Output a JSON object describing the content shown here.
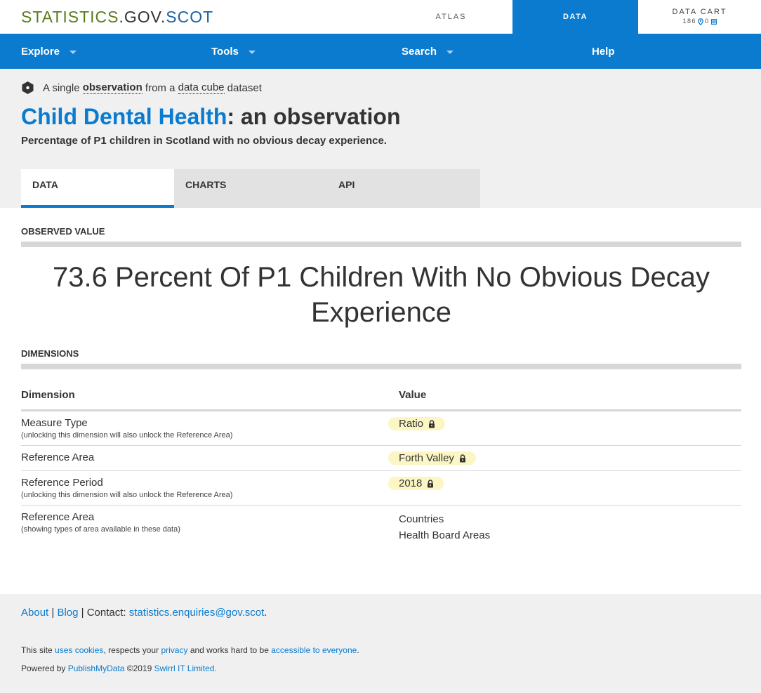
{
  "topbar": {
    "brand_part1": "STATISTICS",
    "brand_part2": ".GOV.",
    "brand_part3": "SCOT",
    "atlas": "ATLAS",
    "data": "DATA",
    "cart_title": "DATA CART",
    "cart_count_places": "186",
    "cart_count_data": "0"
  },
  "mainnav": {
    "items": [
      {
        "label": "Explore"
      },
      {
        "label": "Tools"
      },
      {
        "label": "Search"
      },
      {
        "label": "Help"
      }
    ]
  },
  "header": {
    "intro_prefix": "A single",
    "intro_term1": "observation",
    "intro_mid": "from a",
    "intro_term2": "data cube",
    "intro_suffix": "dataset",
    "title_link": "Child Dental Health",
    "title_suffix": ": an observation",
    "subtitle": "Percentage of P1 children in Scotland with no obvious decay experience.",
    "tabs": [
      {
        "label": "DATA",
        "active": true
      },
      {
        "label": "CHARTS",
        "active": false
      },
      {
        "label": "API",
        "active": false
      }
    ]
  },
  "observed": {
    "section_label": "OBSERVED VALUE",
    "value_text": "73.6 Percent Of P1 Children With No Obvious Decay Experience"
  },
  "dimensions": {
    "section_label": "DIMENSIONS",
    "col_dimension": "Dimension",
    "col_value": "Value",
    "rows": [
      {
        "name": "Measure Type",
        "note": "(unlocking this dimension will also unlock the Reference Area)",
        "value": "Ratio"
      },
      {
        "name": "Reference Area",
        "note": "",
        "value": "Forth Valley"
      },
      {
        "name": "Reference Period",
        "note": "(unlocking this dimension will also unlock the Reference Area)",
        "value": "2018"
      },
      {
        "name": "Reference Area",
        "note": "(showing types of area available in these data)",
        "values": [
          "Countries",
          "Health Board Areas"
        ]
      }
    ]
  },
  "footer": {
    "about": "About",
    "sep1": "|",
    "blog": "Blog",
    "contact_prefix": "| Contact:",
    "email": "statistics.enquiries@gov.scot",
    "period": ".",
    "line1_a": "This site",
    "line1_cookies": "uses cookies",
    "line1_b": ", respects your",
    "line1_privacy": "privacy",
    "line1_c": "and works hard to be",
    "line1_access": "accessible to everyone",
    "line1_d": ".",
    "line2_a": "Powered by",
    "line2_pmd": "PublishMyData",
    "line2_b": "©2019",
    "line2_swirrl": "Swirrl IT Limited."
  },
  "colors": {
    "brand_blue": "#0a7bcf",
    "brand_green": "#5d7a1c",
    "pill_yellow": "#fbf6c3"
  }
}
